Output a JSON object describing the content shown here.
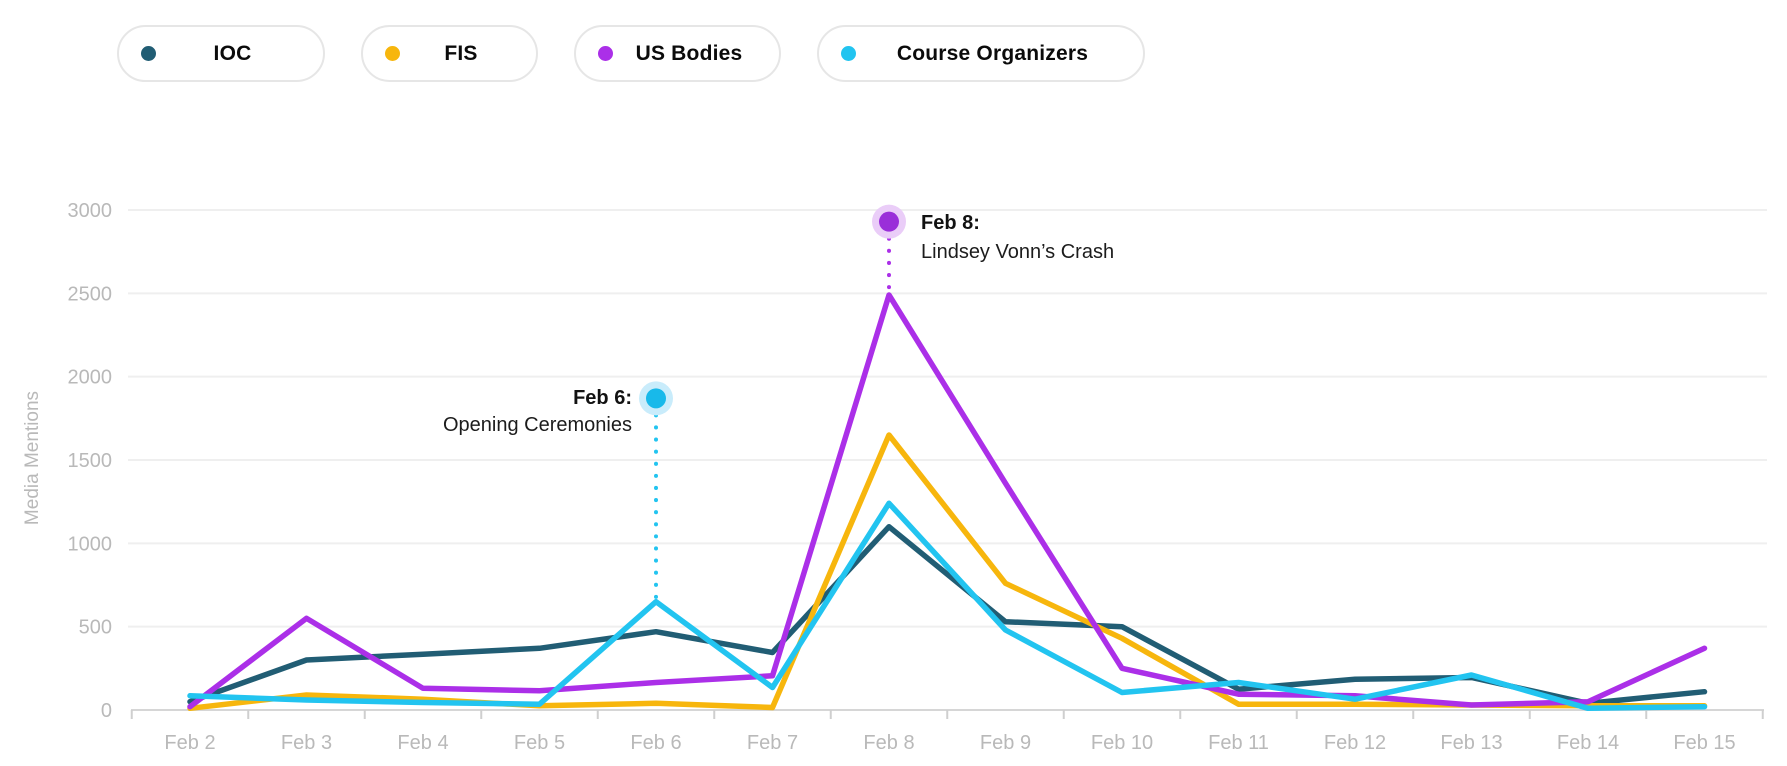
{
  "chart_data": {
    "type": "line",
    "title": "",
    "xlabel": "",
    "ylabel": "Media Mentions",
    "categories": [
      "Feb 2",
      "Feb 3",
      "Feb 4",
      "Feb 5",
      "Feb 6",
      "Feb 7",
      "Feb 8",
      "Feb 9",
      "Feb 10",
      "Feb 11",
      "Feb 12",
      "Feb 13",
      "Feb 14",
      "Feb 15"
    ],
    "y_ticks": [
      0,
      500,
      1000,
      1500,
      2000,
      2500,
      3000
    ],
    "ylim": [
      0,
      3100
    ],
    "grid": "horizontal",
    "legend_position": "top-left",
    "series": [
      {
        "name": "IOC",
        "color": "#215d74",
        "values": [
          50,
          300,
          335,
          370,
          470,
          345,
          1100,
          530,
          500,
          125,
          185,
          195,
          40,
          110
        ]
      },
      {
        "name": "FIS",
        "color": "#f7b60d",
        "values": [
          10,
          90,
          65,
          25,
          40,
          15,
          1650,
          760,
          430,
          35,
          35,
          30,
          25,
          25
        ]
      },
      {
        "name": "US Bodies",
        "color": "#ab2fe8",
        "values": [
          20,
          550,
          130,
          115,
          165,
          205,
          2490,
          1360,
          250,
          95,
          85,
          30,
          50,
          370
        ]
      },
      {
        "name": "Course Organizers",
        "color": "#22c4f0",
        "values": [
          85,
          60,
          45,
          35,
          650,
          135,
          1240,
          480,
          105,
          165,
          65,
          210,
          10,
          20
        ]
      }
    ],
    "annotations": [
      {
        "label_line1": "Feb 6:",
        "label_line2": "Opening Ceremonies",
        "category": "Feb 6",
        "series": "Course Organizers",
        "dot_value": 1870,
        "dot_color": "#18b9ea",
        "halo_color": "#c9ecfb",
        "text_side": "left"
      },
      {
        "label_line1": "Feb 8:",
        "label_line2": "Lindsey Vonn’s Crash",
        "category": "Feb 8",
        "series": "US Bodies",
        "dot_value": 2930,
        "dot_color": "#9a2fd9",
        "halo_color": "#eacdf8",
        "text_side": "right"
      }
    ]
  },
  "axes": {
    "y_tick_labels": [
      "0",
      "500",
      "1000",
      "1500",
      "2000",
      "2500",
      "3000"
    ],
    "x_tick_labels": [
      "Feb 2",
      "Feb 3",
      "Feb 4",
      "Feb 5",
      "Feb 6",
      "Feb 7",
      "Feb 8",
      "Feb 9",
      "Feb 10",
      "Feb 11",
      "Feb 12",
      "Feb 13",
      "Feb 14",
      "Feb 15"
    ]
  }
}
